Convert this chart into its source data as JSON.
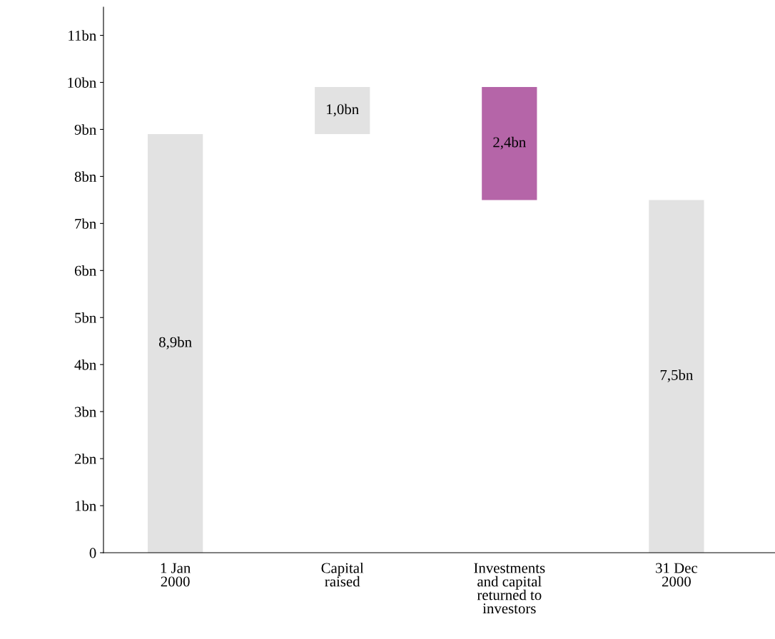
{
  "chart_data": {
    "type": "bar",
    "categories": [
      "1 Jan\n2000",
      "Capital\nraised",
      "Investments\nand capital\nreturned to\ninvestors",
      "31 Dec\n2000"
    ],
    "values": [
      8.9,
      1.0,
      2.4,
      7.5
    ],
    "base": [
      0,
      8.9,
      7.5,
      0
    ],
    "colors": [
      "#e2e2e2",
      "#e2e2e2",
      "#b565a8",
      "#e2e2e2"
    ],
    "value_labels": [
      "8,9bn",
      "1,0bn",
      "2,4bn",
      "7,5bn"
    ],
    "ylim": [
      0,
      11.6
    ],
    "yticks": [
      0,
      {
        "value": 1,
        "label": "1bn"
      },
      {
        "value": 2,
        "label": "2bn"
      },
      {
        "value": 3,
        "label": "3bn"
      },
      {
        "value": 4,
        "label": "4bn"
      },
      {
        "value": 5,
        "label": "5bn"
      },
      {
        "value": 6,
        "label": "6bn"
      },
      {
        "value": 7,
        "label": "7bn"
      },
      {
        "value": 8,
        "label": "8bn"
      },
      {
        "value": 9,
        "label": "9bn"
      },
      {
        "value": 10,
        "label": "10bn"
      },
      {
        "value": 11,
        "label": "11bn"
      }
    ],
    "grid": false
  }
}
